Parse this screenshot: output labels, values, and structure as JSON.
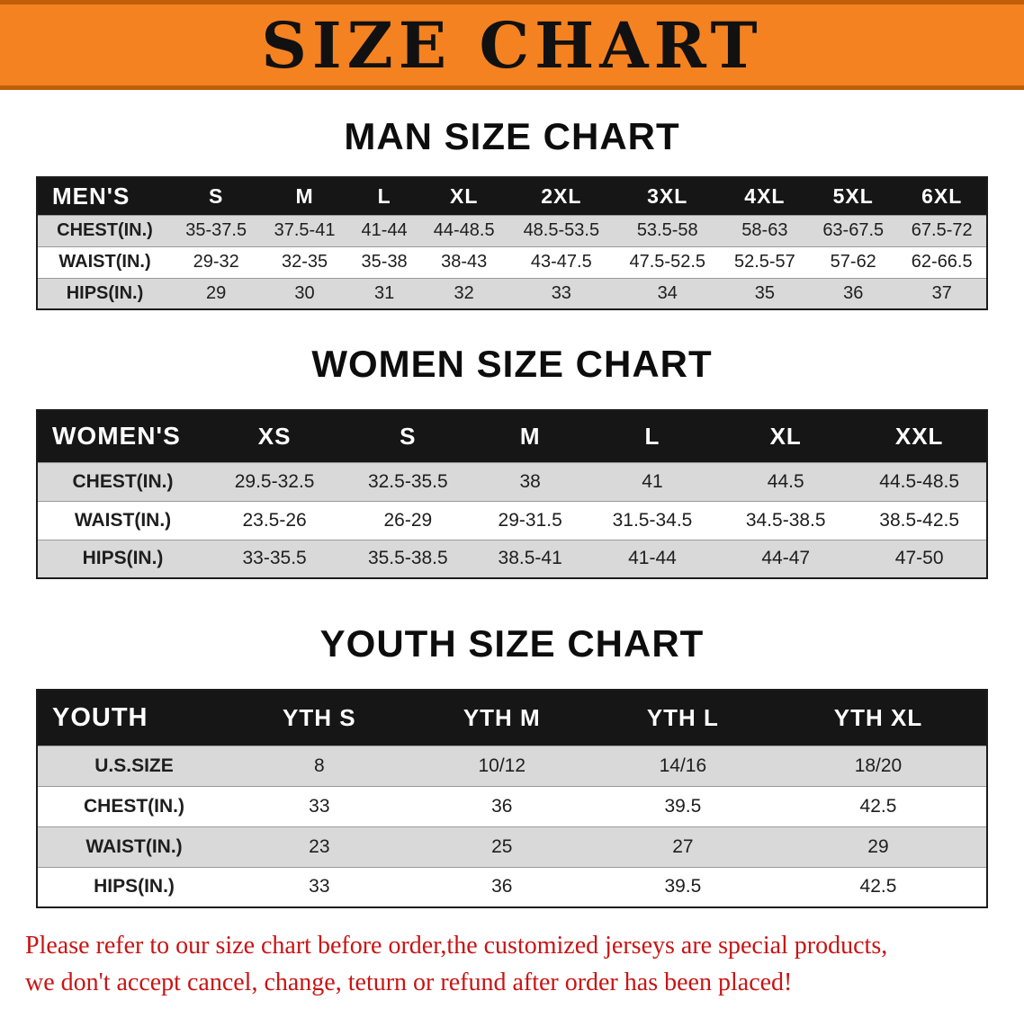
{
  "banner": {
    "title": "SIZE CHART"
  },
  "colors": {
    "banner_bg": "#f58220",
    "banner_text": "#111111",
    "table_header_bg": "#161616",
    "table_header_text": "#ffffff",
    "row_alt_bg": "#d9d9d9",
    "row_bg": "#ffffff",
    "footnote_text": "#c81414"
  },
  "sections": [
    {
      "id": "men",
      "heading": "MAN SIZE CHART",
      "table": {
        "header": [
          "MEN'S",
          "S",
          "M",
          "L",
          "XL",
          "2XL",
          "3XL",
          "4XL",
          "5XL",
          "6XL"
        ],
        "rows": [
          [
            "CHEST(IN.)",
            "35-37.5",
            "37.5-41",
            "41-44",
            "44-48.5",
            "48.5-53.5",
            "53.5-58",
            "58-63",
            "63-67.5",
            "67.5-72"
          ],
          [
            "WAIST(IN.)",
            "29-32",
            "32-35",
            "35-38",
            "38-43",
            "43-47.5",
            "47.5-52.5",
            "52.5-57",
            "57-62",
            "62-66.5"
          ],
          [
            "HIPS(IN.)",
            "29",
            "30",
            "31",
            "32",
            "33",
            "34",
            "35",
            "36",
            "37"
          ]
        ]
      }
    },
    {
      "id": "women",
      "heading": "WOMEN SIZE CHART",
      "table": {
        "header": [
          "WOMEN'S",
          "XS",
          "S",
          "M",
          "L",
          "XL",
          "XXL"
        ],
        "rows": [
          [
            "CHEST(IN.)",
            "29.5-32.5",
            "32.5-35.5",
            "38",
            "41",
            "44.5",
            "44.5-48.5"
          ],
          [
            "WAIST(IN.)",
            "23.5-26",
            "26-29",
            "29-31.5",
            "31.5-34.5",
            "34.5-38.5",
            "38.5-42.5"
          ],
          [
            "HIPS(IN.)",
            "33-35.5",
            "35.5-38.5",
            "38.5-41",
            "41-44",
            "44-47",
            "47-50"
          ]
        ]
      }
    },
    {
      "id": "youth",
      "heading": "YOUTH SIZE CHART",
      "table": {
        "header": [
          "YOUTH",
          "YTH S",
          "YTH M",
          "YTH L",
          "YTH XL"
        ],
        "rows": [
          [
            "U.S.SIZE",
            "8",
            "10/12",
            "14/16",
            "18/20"
          ],
          [
            "CHEST(IN.)",
            "33",
            "36",
            "39.5",
            "42.5"
          ],
          [
            "WAIST(IN.)",
            "23",
            "25",
            "27",
            "29"
          ],
          [
            "HIPS(IN.)",
            "33",
            "36",
            "39.5",
            "42.5"
          ]
        ]
      }
    }
  ],
  "footnote": {
    "lines": [
      "Please refer to our size chart before order,the customized jerseys are special products,",
      "we don't accept cancel, change, teturn or refund after order has been placed!"
    ]
  }
}
